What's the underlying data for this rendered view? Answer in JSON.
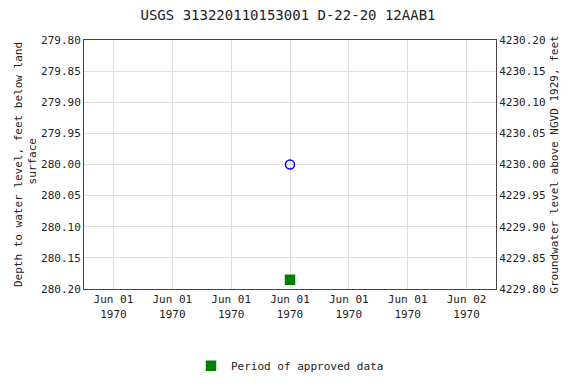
{
  "chart_data": {
    "type": "scatter",
    "title": "USGS 313220110153001 D-22-20 12AAB1",
    "ylabel": "Depth to water level, feet below land\n surface",
    "y2label": "Groundwater level above NGVD 1929, feet",
    "categories": [
      "Jun 01\n1970",
      "Jun 01\n1970",
      "Jun 01\n1970",
      "Jun 01\n1970",
      "Jun 01\n1970",
      "Jun 01\n1970",
      "Jun 02\n1970"
    ],
    "series": [
      {
        "color": "#0000ff",
        "marker": "circle-open",
        "values": [
          null,
          null,
          null,
          280.0,
          null,
          null,
          null
        ]
      },
      {
        "name": "Period of approved data",
        "color": "#008000",
        "marker": "square",
        "values": [
          null,
          null,
          null,
          280.185,
          null,
          null,
          null
        ]
      }
    ],
    "ylim": [
      280.2,
      279.8
    ],
    "yticks": [
      {
        "value": 279.8,
        "label": "279.80"
      },
      {
        "value": 279.85,
        "label": "279.85"
      },
      {
        "value": 279.9,
        "label": "279.90"
      },
      {
        "value": 279.95,
        "label": "279.95"
      },
      {
        "value": 280.0,
        "label": "280.00"
      },
      {
        "value": 280.05,
        "label": "280.05"
      },
      {
        "value": 280.1,
        "label": "280.10"
      },
      {
        "value": 280.15,
        "label": "280.15"
      },
      {
        "value": 280.2,
        "label": "280.20"
      }
    ],
    "y2lim": [
      4229.8,
      4230.2
    ],
    "y2ticks": [
      {
        "value": 4230.2,
        "label": "4230.20"
      },
      {
        "value": 4230.15,
        "label": "4230.15"
      },
      {
        "value": 4230.1,
        "label": "4230.10"
      },
      {
        "value": 4230.05,
        "label": "4230.05"
      },
      {
        "value": 4230.0,
        "label": "4230.00"
      },
      {
        "value": 4229.95,
        "label": "4229.95"
      },
      {
        "value": 4229.9,
        "label": "4229.90"
      },
      {
        "value": 4229.85,
        "label": "4229.85"
      },
      {
        "value": 4229.8,
        "label": "4229.80"
      }
    ],
    "grid": true,
    "legend": "bottom"
  }
}
